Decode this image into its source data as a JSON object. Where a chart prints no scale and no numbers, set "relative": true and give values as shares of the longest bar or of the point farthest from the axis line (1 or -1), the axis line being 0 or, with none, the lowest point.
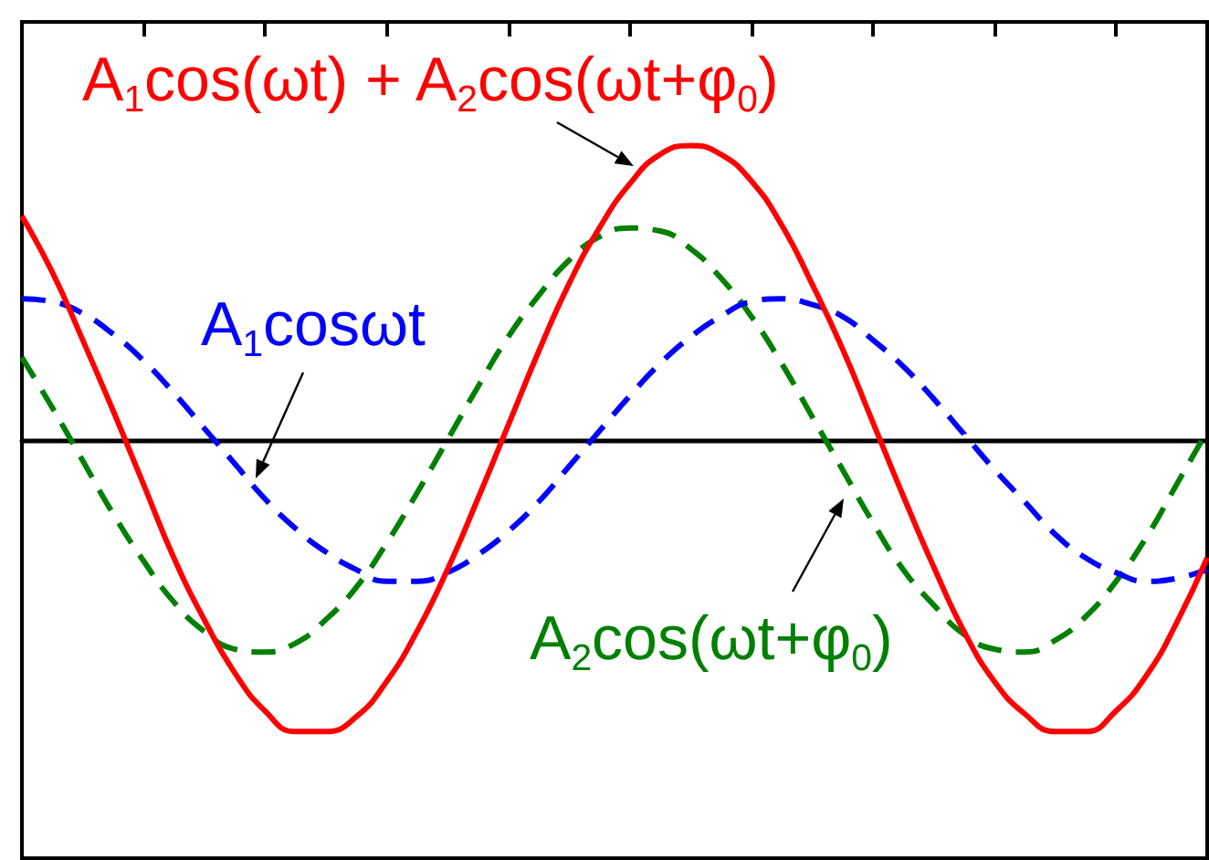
{
  "chart_data": {
    "type": "line",
    "relative": true,
    "line_style": "solid",
    "categories": [
      null,
      null,
      null,
      null,
      null,
      null,
      null,
      null,
      null,
      null,
      null,
      null,
      null,
      null,
      null,
      null,
      null,
      null,
      null,
      null,
      null,
      null,
      null,
      null,
      null,
      null,
      null,
      null,
      null,
      null,
      null,
      null,
      null,
      null,
      null,
      null,
      null,
      null,
      null,
      null
    ],
    "series": [
      {
        "name": "A$_{1}$cos(ωt) + A$_{2}$cos(ωt+φ$_{0}$)",
        "color": "#ff0000",
        "values": [
          0.76,
          0.57,
          0.34,
          0.1,
          -0.15,
          -0.4,
          -0.61,
          -0.79,
          -0.92,
          -0.99,
          -0.99,
          -0.94,
          -0.82,
          -0.65,
          -0.44,
          -0.2,
          0.05,
          0.3,
          0.53,
          0.72,
          0.87,
          0.97,
          1,
          0.97,
          0.88,
          0.73,
          0.53,
          0.31,
          0.06,
          -0.19,
          -0.43,
          -0.65,
          -0.82,
          -0.93,
          -0.99,
          -0.99,
          -0.92,
          -0.8,
          -0.62,
          -0.4
        ]
      },
      {
        "name": "A$_{1}$cosωt",
        "color": "#0000ff",
        "line_style": "dashed",
        "values": [
          0.48,
          0.47,
          0.43,
          0.36,
          0.27,
          0.16,
          0.04,
          -0.08,
          -0.2,
          -0.3,
          -0.38,
          -0.44,
          -0.48,
          -0.48,
          -0.45,
          -0.39,
          -0.31,
          -0.21,
          -0.09,
          0.03,
          0.15,
          0.26,
          0.35,
          0.42,
          0.47,
          0.48,
          0.46,
          0.42,
          0.34,
          0.25,
          0.14,
          0.02,
          -0.1,
          -0.21,
          -0.32,
          -0.4,
          -0.45,
          -0.48,
          -0.47,
          -0.44
        ]
      },
      {
        "name": "A$_{2}$cos(ωt+φ$_{0}$)",
        "color": "#008000",
        "line_style": "dashed",
        "values": [
          0.28,
          0.11,
          -0.07,
          -0.25,
          -0.41,
          -0.55,
          -0.65,
          -0.71,
          -0.72,
          -0.69,
          -0.61,
          -0.5,
          -0.35,
          -0.18,
          0,
          0.18,
          0.35,
          0.49,
          0.61,
          0.69,
          0.72,
          0.71,
          0.65,
          0.55,
          0.42,
          0.26,
          0.08,
          -0.1,
          -0.28,
          -0.44,
          -0.56,
          -0.66,
          -0.71,
          -0.72,
          -0.68,
          -0.6,
          -0.48,
          -0.33,
          -0.15,
          0.03
        ]
      }
    ]
  }
}
